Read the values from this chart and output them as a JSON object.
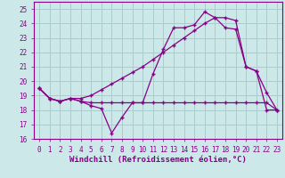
{
  "background_color": "#cce8e8",
  "grid_color": "#aacccc",
  "line_color": "#880088",
  "xlabel": "Windchill (Refroidissement éolien,°C)",
  "x_all": [
    0,
    1,
    2,
    3,
    4,
    5,
    6,
    7,
    8,
    9,
    10,
    11,
    12,
    13,
    14,
    15,
    16,
    17,
    18,
    19,
    20,
    21,
    22,
    23
  ],
  "line_temp": [
    19.5,
    18.8,
    18.6,
    18.8,
    18.6,
    18.3,
    18.1,
    16.4,
    17.5,
    18.5,
    18.5,
    20.5,
    22.2,
    23.7,
    23.7,
    23.9,
    24.8,
    24.4,
    23.7,
    23.6,
    21.0,
    20.7,
    18.0,
    18.0
  ],
  "line_wind": [
    19.5,
    18.8,
    18.6,
    18.8,
    18.6,
    18.5,
    18.5,
    18.5,
    18.5,
    18.5,
    18.5,
    18.5,
    18.5,
    18.5,
    18.5,
    18.5,
    18.5,
    18.5,
    18.5,
    18.5,
    18.5,
    18.5,
    18.5,
    18.0
  ],
  "line_diag": [
    19.5,
    18.8,
    18.6,
    18.8,
    18.8,
    19.0,
    19.4,
    19.8,
    20.2,
    20.6,
    21.0,
    21.5,
    22.0,
    22.5,
    23.0,
    23.5,
    24.0,
    24.4,
    24.4,
    24.2,
    21.0,
    20.7,
    19.2,
    18.0
  ],
  "xlim": [
    -0.5,
    23.5
  ],
  "ylim": [
    16,
    25.5
  ],
  "yticks": [
    16,
    17,
    18,
    19,
    20,
    21,
    22,
    23,
    24,
    25
  ],
  "xticks": [
    0,
    1,
    2,
    3,
    4,
    5,
    6,
    7,
    8,
    9,
    10,
    11,
    12,
    13,
    14,
    15,
    16,
    17,
    18,
    19,
    20,
    21,
    22,
    23
  ],
  "tick_fontsize": 5.5,
  "xlabel_fontsize": 6.5
}
